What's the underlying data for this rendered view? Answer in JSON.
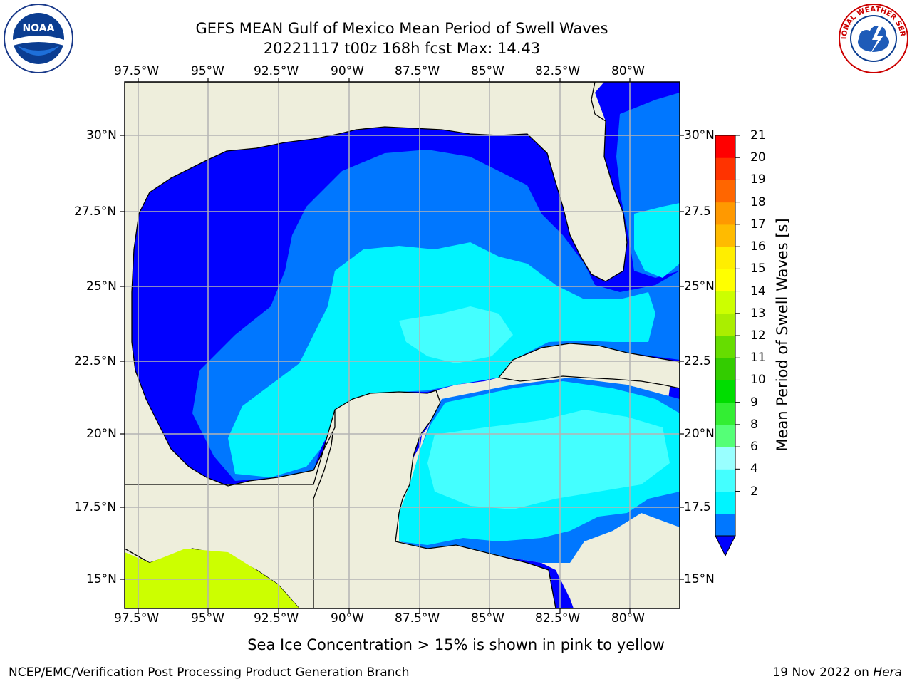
{
  "title": {
    "line1": "GEFS MEAN Gulf of Mexico Mean Period of Swell Waves",
    "line2": "20221117 t00z 168h fcst   Max: 14.43"
  },
  "logos": {
    "left": {
      "icon": "noaa-logo-icon",
      "text": "NOAA"
    },
    "right": {
      "icon": "nws-logo-icon",
      "text": "NATIONAL WEATHER SERVICE"
    }
  },
  "map": {
    "lon_labels": [
      "97.5°W",
      "95°W",
      "92.5°W",
      "90°W",
      "87.5°W",
      "85°W",
      "82.5°W",
      "80°W"
    ],
    "lat_labels_left": [
      "30°N",
      "27.5°N",
      "25°N",
      "22.5°N",
      "20°N",
      "17.5°N",
      "15°N"
    ],
    "lat_labels_right": [
      "30°N",
      "27.5",
      "25°N",
      "22.5",
      "20°N",
      "17.5",
      "15°N"
    ],
    "colors": {
      "land": "#eeeedc",
      "grid": "#b4b4b4",
      "lt2": "#0000ff",
      "c2_4": "#0077ff",
      "c4_6": "#00f4ff",
      "c6_8": "#44ffff",
      "c8_9": "#99ffff",
      "ice": "#ccff00"
    }
  },
  "colorbar": {
    "label": "Mean Period of Swell Waves [s]",
    "ticks": [
      "21",
      "20",
      "19",
      "18",
      "17",
      "16",
      "15",
      "14",
      "13",
      "12",
      "11",
      "10",
      "9",
      "8",
      "6",
      "4",
      "2"
    ],
    "colors": [
      "#0077ff",
      "#00f4ff",
      "#44ffff",
      "#99ffff",
      "#55ff77",
      "#33ee33",
      "#00dd00",
      "#33cc00",
      "#66dd00",
      "#aaee00",
      "#ccff00",
      "#ffff00",
      "#ffee00",
      "#ffbb00",
      "#ff9900",
      "#ff6600",
      "#ff3300",
      "#ff0000"
    ],
    "under_color": "#0000ff"
  },
  "footer": {
    "note": "Sea Ice Concentration > 15% is shown in pink to yellow",
    "credit": "NCEP/EMC/Verification Post Processing Product Generation Branch",
    "date": "19 Nov 2022 on ",
    "host": "Hera"
  }
}
